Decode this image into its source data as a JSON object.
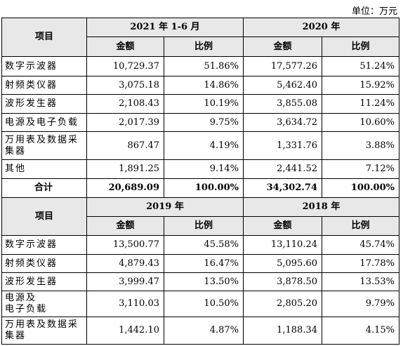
{
  "unit": "单位：万元",
  "sections": [
    {
      "item_label": "项目",
      "periods": [
        "2021 年 1-6 月",
        "2020 年"
      ],
      "amount_label": "金额",
      "ratio_label": "比例",
      "rows": [
        [
          "数字示波器",
          "10,729.37",
          "51.86%",
          "17,577.26",
          "51.24%"
        ],
        [
          "射频类仪器",
          "3,075.18",
          "14.86%",
          "5,462.40",
          "15.92%"
        ],
        [
          "波形发生器",
          "2,108.43",
          "10.19%",
          "3,855.08",
          "11.24%"
        ],
        [
          "电源及电子负载",
          "2,017.39",
          "9.75%",
          "3,634.72",
          "10.60%"
        ],
        [
          "万用表及数据采\n集器",
          "867.47",
          "4.19%",
          "1,331.76",
          "3.88%"
        ],
        [
          "其他",
          "1,891.25",
          "9.14%",
          "2,441.52",
          "7.12%"
        ]
      ],
      "total": [
        "合计",
        "20,689.09",
        "100.00%",
        "34,302.74",
        "100.00%"
      ]
    },
    {
      "item_label": "项目",
      "periods": [
        "2019 年",
        "2018 年"
      ],
      "amount_label": "金额",
      "ratio_label": "比例",
      "rows": [
        [
          "数字示波器",
          "13,500.77",
          "45.58%",
          "13,110.24",
          "45.74%"
        ],
        [
          "射频类仪器",
          "4,879.43",
          "16.47%",
          "5,095.60",
          "17.78%"
        ],
        [
          "波形发生器",
          "3,999.47",
          "13.50%",
          "3,878.50",
          "13.53%"
        ],
        [
          "电源及\n电子负载",
          "3,110.03",
          "10.50%",
          "2,805.20",
          "9.79%"
        ],
        [
          "万用表及数据采\n集器",
          "1,442.10",
          "4.87%",
          "1,188.34",
          "4.15%"
        ]
      ]
    }
  ]
}
